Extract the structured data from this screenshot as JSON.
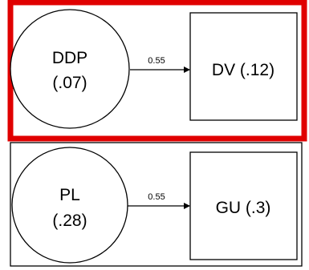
{
  "diagram": {
    "highlight_color": "#e00000",
    "stroke_color": "#000000",
    "models": [
      {
        "latent": {
          "line1": "DDP",
          "line2": "(.07)"
        },
        "observed": {
          "label": "DV (.12)"
        },
        "path": {
          "coefficient": "0.55"
        }
      },
      {
        "latent": {
          "line1": "PL",
          "line2": "(.28)"
        },
        "observed": {
          "label": "GU (.3)"
        },
        "path": {
          "coefficient": "0.55"
        }
      }
    ]
  }
}
